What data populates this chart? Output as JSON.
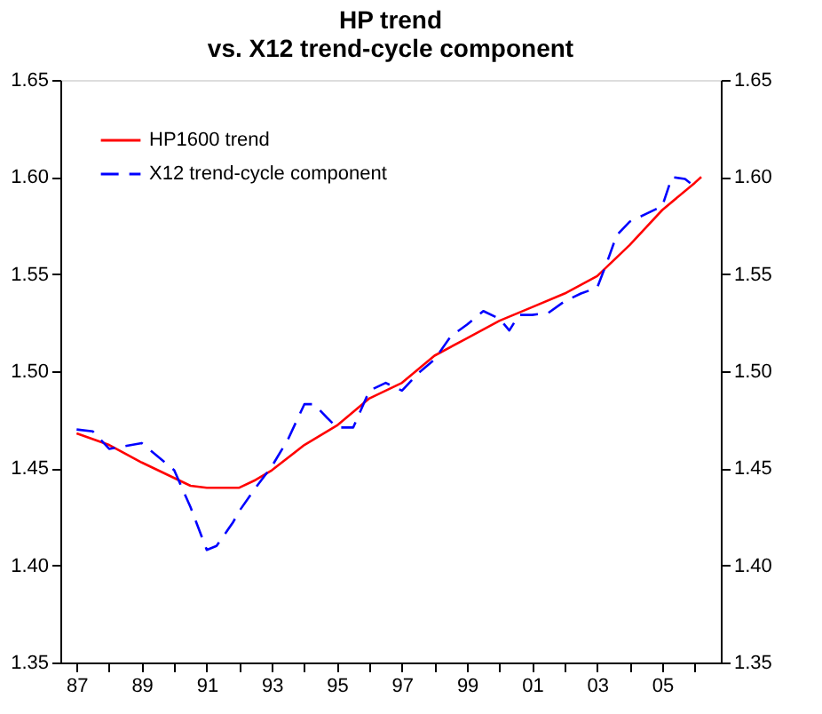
{
  "chart_data": {
    "type": "line",
    "title": "HP trend\nvs. X12 trend-cycle component",
    "legend": "top left",
    "grid": false,
    "marker": "none",
    "xlim": [
      1986.5,
      2006.8
    ],
    "xticks": [
      {
        "value": 1987,
        "label": "87"
      },
      {
        "value": 1988,
        "label": null
      },
      {
        "value": 1989,
        "label": "89"
      },
      {
        "value": 1990,
        "label": null
      },
      {
        "value": 1991,
        "label": "91"
      },
      {
        "value": 1992,
        "label": null
      },
      {
        "value": 1993,
        "label": "93"
      },
      {
        "value": 1994,
        "label": null
      },
      {
        "value": 1995,
        "label": "95"
      },
      {
        "value": 1996,
        "label": null
      },
      {
        "value": 1997,
        "label": "97"
      },
      {
        "value": 1998,
        "label": null
      },
      {
        "value": 1999,
        "label": "99"
      },
      {
        "value": 2000,
        "label": null
      },
      {
        "value": 2001,
        "label": "01"
      },
      {
        "value": 2002,
        "label": null
      },
      {
        "value": 2003,
        "label": "03"
      },
      {
        "value": 2004,
        "label": null
      },
      {
        "value": 2005,
        "label": "05"
      },
      {
        "value": 2006,
        "label": null
      }
    ],
    "ylim": [
      1.35,
      1.65
    ],
    "yticks": [
      {
        "value": 1.35,
        "label": "1.35"
      },
      {
        "value": 1.4,
        "label": "1.40"
      },
      {
        "value": 1.45,
        "label": "1.45"
      },
      {
        "value": 1.5,
        "label": "1.50"
      },
      {
        "value": 1.55,
        "label": "1.55"
      },
      {
        "value": 1.6,
        "label": "1.60"
      },
      {
        "value": 1.65,
        "label": "1.65"
      }
    ],
    "y2lim": [
      1.35,
      1.65
    ],
    "y2ticks": [
      {
        "value": 1.35,
        "label": "1.35"
      },
      {
        "value": 1.4,
        "label": "1.40"
      },
      {
        "value": 1.45,
        "label": "1.45"
      },
      {
        "value": 1.5,
        "label": "1.50"
      },
      {
        "value": 1.55,
        "label": "1.55"
      },
      {
        "value": 1.6,
        "label": "1.60"
      },
      {
        "value": 1.65,
        "label": "1.65"
      }
    ],
    "series": [
      {
        "name": "HP1600 trend",
        "color": "#ff0000",
        "line_style": "solid",
        "x": [
          1987,
          1988,
          1989,
          1990,
          1990.5,
          1991,
          1992,
          1992.5,
          1993,
          1994,
          1995,
          1996,
          1997,
          1998,
          1999,
          2000,
          2001,
          2002,
          2003,
          2004,
          2005,
          2006,
          2006.2
        ],
        "values": [
          1.468,
          1.462,
          1.453,
          1.445,
          1.441,
          1.44,
          1.44,
          1.444,
          1.449,
          1.462,
          1.472,
          1.486,
          1.494,
          1.508,
          1.517,
          1.526,
          1.533,
          1.54,
          1.549,
          1.565,
          1.583,
          1.597,
          1.6
        ]
      },
      {
        "name": "X12 trend-cycle component",
        "color": "#0000ff",
        "line_style": "dashed",
        "x": [
          1987,
          1987.5,
          1988,
          1989,
          1990,
          1990.5,
          1991,
          1991.3,
          1991.8,
          1992,
          1992.5,
          1993,
          1993.5,
          1994,
          1994.3,
          1994.7,
          1995,
          1995.5,
          1996,
          1996.5,
          1997,
          1997.5,
          1998,
          1998.5,
          1999,
          1999.5,
          2000,
          2000.3,
          2000.6,
          2001,
          2001.5,
          2002,
          2002.5,
          2003,
          2003.3,
          2003.6,
          2004,
          2004.5,
          2005,
          2005.3,
          2005.7,
          2006
        ],
        "values": [
          1.47,
          1.469,
          1.46,
          1.463,
          1.449,
          1.43,
          1.408,
          1.41,
          1.422,
          1.428,
          1.44,
          1.451,
          1.465,
          1.483,
          1.483,
          1.476,
          1.471,
          1.471,
          1.49,
          1.494,
          1.49,
          1.499,
          1.506,
          1.518,
          1.524,
          1.531,
          1.527,
          1.521,
          1.529,
          1.529,
          1.53,
          1.536,
          1.54,
          1.543,
          1.556,
          1.57,
          1.577,
          1.581,
          1.585,
          1.6,
          1.599,
          1.595
        ]
      }
    ]
  }
}
